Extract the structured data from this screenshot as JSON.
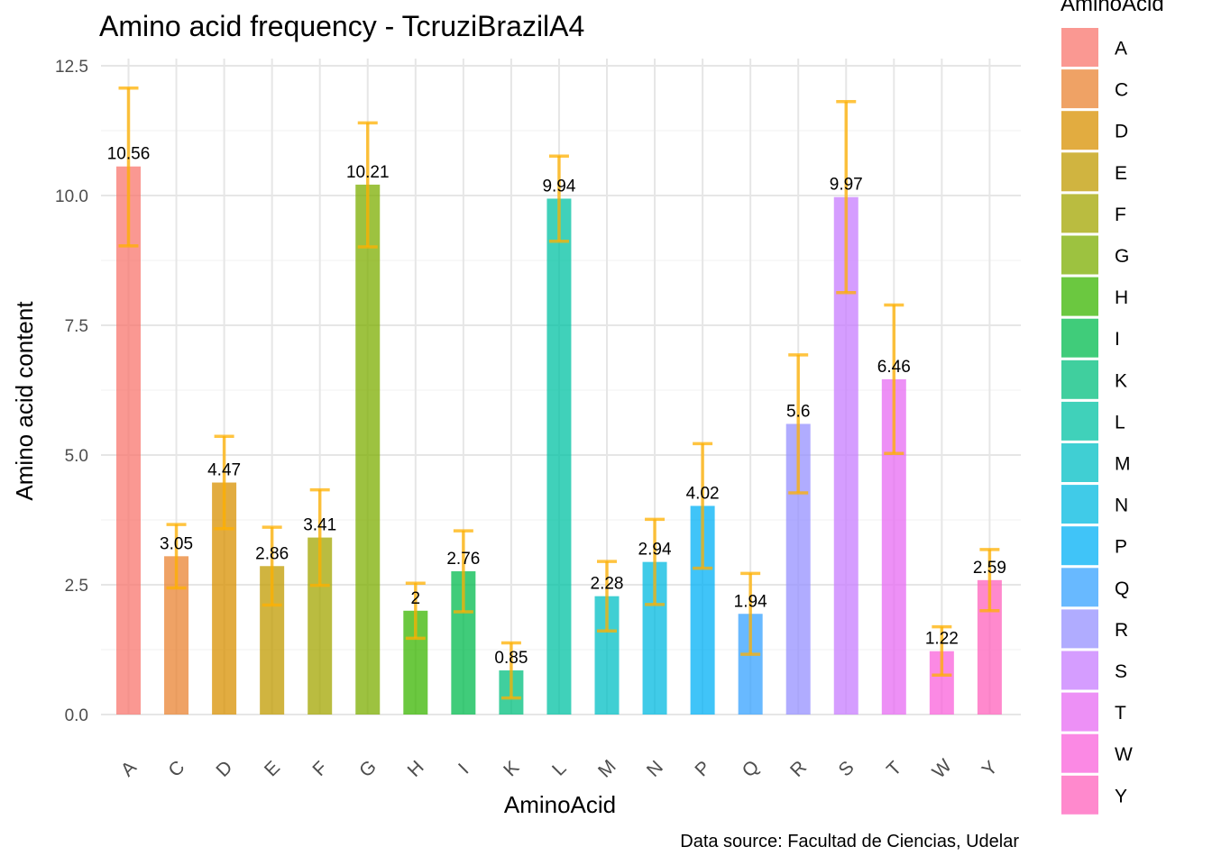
{
  "chart_data": {
    "type": "bar",
    "title": "Amino acid frequency - TcruziBrazilA4",
    "xlabel": "AminoAcid",
    "ylabel": "Amino acid content",
    "caption": "Data source: Facultad de Ciencias, Udelar",
    "legend_title": "AminoAcid",
    "legend_position": "right",
    "grid": true,
    "ylim": [
      0,
      12.8
    ],
    "y_ticks": [
      "0.0",
      "2.5",
      "5.0",
      "7.5",
      "10.0",
      "12.5"
    ],
    "categories": [
      "A",
      "C",
      "D",
      "E",
      "F",
      "G",
      "H",
      "I",
      "K",
      "L",
      "M",
      "N",
      "P",
      "Q",
      "R",
      "S",
      "T",
      "W",
      "Y"
    ],
    "values": [
      10.56,
      3.05,
      4.47,
      2.86,
      3.41,
      10.21,
      2,
      2.76,
      0.85,
      9.94,
      2.28,
      2.94,
      4.02,
      1.94,
      5.6,
      9.97,
      6.46,
      1.22,
      2.59
    ],
    "value_labels": [
      "10.56",
      "3.05",
      "4.47",
      "2.86",
      "3.41",
      "10.21",
      "2",
      "2.76",
      "0.85",
      "9.94",
      "2.28",
      "2.94",
      "4.02",
      "1.94",
      "5.6",
      "9.97",
      "6.46",
      "1.22",
      "2.59"
    ],
    "error_low": [
      9.03,
      2.44,
      3.58,
      2.11,
      2.49,
      9.01,
      1.47,
      1.98,
      0.32,
      9.12,
      1.61,
      2.12,
      2.82,
      1.16,
      4.27,
      8.13,
      5.03,
      0.76,
      2.0
    ],
    "error_high": [
      12.07,
      3.66,
      5.36,
      3.61,
      4.33,
      11.4,
      2.53,
      3.54,
      1.38,
      10.76,
      2.95,
      3.76,
      5.22,
      2.72,
      6.93,
      11.81,
      7.89,
      1.69,
      3.18
    ],
    "colors": [
      "#F8766D",
      "#EA8331",
      "#D89000",
      "#C09B00",
      "#A3A500",
      "#7CAE00",
      "#39B600",
      "#00BB4E",
      "#00BF7D",
      "#00C1A3",
      "#00BFC4",
      "#00BAE0",
      "#00B0F6",
      "#35A2FF",
      "#9590FF",
      "#C77CFF",
      "#E76BF3",
      "#FA62DB",
      "#FF62BC"
    ],
    "error_color": "#FFB000"
  }
}
